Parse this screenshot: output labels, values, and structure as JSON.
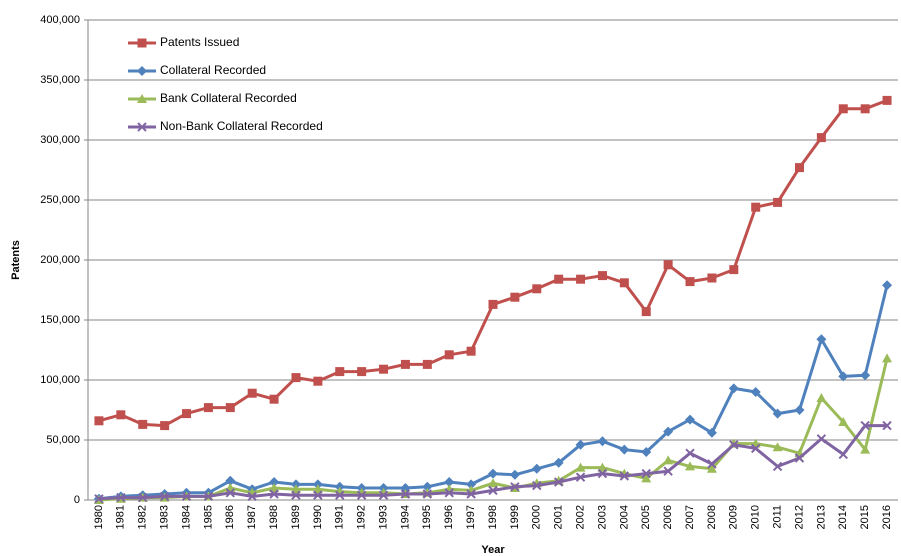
{
  "chart_data": {
    "type": "line",
    "x_label": "Year",
    "y_label": "Patents",
    "categories": [
      "1980",
      "1981",
      "1982",
      "1983",
      "1984",
      "1985",
      "1986",
      "1987",
      "1988",
      "1989",
      "1990",
      "1991",
      "1992",
      "1993",
      "1994",
      "1995",
      "1996",
      "1997",
      "1998",
      "1999",
      "2000",
      "2001",
      "2002",
      "2003",
      "2004",
      "2005",
      "2006",
      "2007",
      "2008",
      "2009",
      "2010",
      "2011",
      "2012",
      "2013",
      "2014",
      "2015",
      "2016"
    ],
    "series": [
      {
        "name": "Patents Issued",
        "color": "#c0504d",
        "marker": "square",
        "values": [
          66000,
          71000,
          63000,
          62000,
          72000,
          77000,
          77000,
          89000,
          84000,
          102000,
          99000,
          107000,
          107000,
          109000,
          113000,
          113000,
          121000,
          124000,
          163000,
          169000,
          176000,
          184000,
          184000,
          187000,
          181000,
          157000,
          196000,
          182000,
          185000,
          192000,
          244000,
          248000,
          277000,
          302000,
          326000,
          326000,
          333000
        ]
      },
      {
        "name": "Collateral Recorded",
        "color": "#4f81bd",
        "marker": "diamond",
        "values": [
          1000,
          3000,
          4000,
          5000,
          6000,
          6000,
          16000,
          9000,
          15000,
          13000,
          13000,
          11000,
          10000,
          10000,
          10000,
          11000,
          15000,
          13000,
          22000,
          21000,
          26000,
          31000,
          46000,
          49000,
          42000,
          40000,
          57000,
          67000,
          56000,
          93000,
          90000,
          72000,
          75000,
          134000,
          103000,
          104000,
          179000
        ]
      },
      {
        "name": "Bank Collateral Recorded",
        "color": "#9bbb59",
        "marker": "triangle",
        "values": [
          0,
          1000,
          2000,
          2000,
          3000,
          3000,
          10000,
          6000,
          10000,
          9000,
          9000,
          7000,
          6000,
          6000,
          5000,
          6000,
          9000,
          8000,
          14000,
          10000,
          14000,
          16000,
          27000,
          27000,
          22000,
          18000,
          33000,
          28000,
          26000,
          47000,
          47000,
          44000,
          39000,
          85000,
          65000,
          42000,
          118000
        ]
      },
      {
        "name": "Non-Bank Collateral Recorded",
        "color": "#8064a2",
        "marker": "x",
        "values": [
          1000,
          2000,
          2000,
          3000,
          3000,
          3000,
          6000,
          3000,
          5000,
          4000,
          4000,
          4000,
          4000,
          4000,
          5000,
          5000,
          6000,
          5000,
          8000,
          11000,
          12000,
          15000,
          19000,
          22000,
          20000,
          22000,
          24000,
          39000,
          30000,
          46000,
          43000,
          28000,
          35000,
          51000,
          38000,
          62000,
          62000
        ]
      }
    ],
    "ylim": [
      0,
      400000
    ],
    "yticks": [
      0,
      {
        "value": 50000,
        "label": "50,000"
      },
      {
        "value": 100000,
        "label": "100,000"
      },
      {
        "value": 150000,
        "label": "150,000"
      },
      {
        "value": 200000,
        "label": "200,000"
      },
      {
        "value": 250000,
        "label": "250,000"
      },
      {
        "value": 300000,
        "label": "300,000"
      },
      {
        "value": 350000,
        "label": "350,000"
      },
      {
        "value": 400000,
        "label": "400,000"
      }
    ],
    "grid": true,
    "legend": "top-left"
  }
}
